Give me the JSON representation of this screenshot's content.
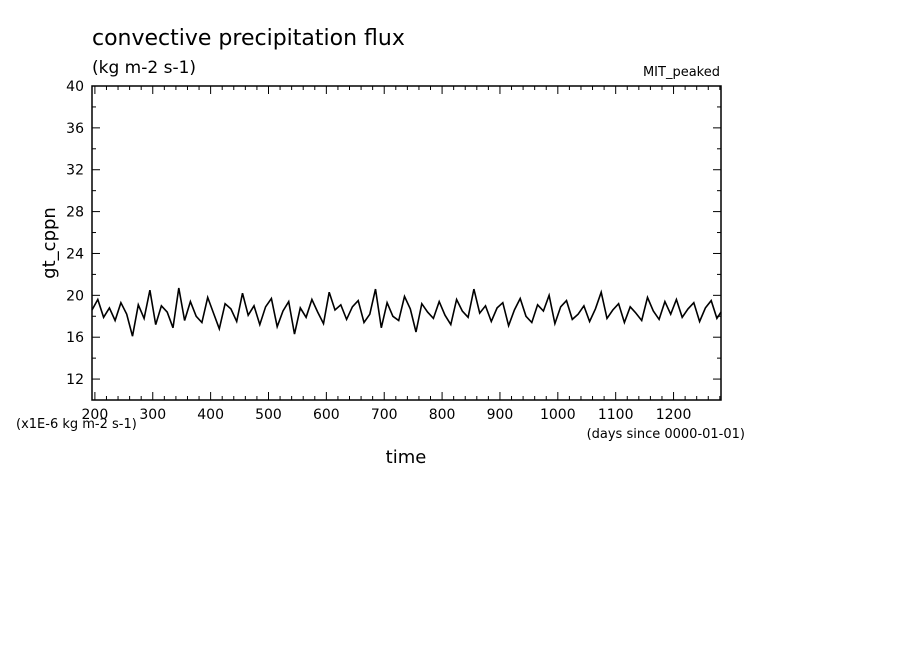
{
  "chart_data": {
    "type": "line",
    "title": "convective precipitation flux",
    "subtitle": "(kg m-2 s-1)",
    "experiment": "MIT_peaked",
    "xlabel": "time",
    "x_units": "(days since 0000-01-01)",
    "ylabel": "gt_cppn",
    "y_scale_note": "(x1E-6 kg m-2 s-1)",
    "xlim": [
      195,
      1282
    ],
    "ylim": [
      10,
      40
    ],
    "x_ticks": [
      200,
      300,
      400,
      500,
      600,
      700,
      800,
      900,
      1000,
      1100,
      1200
    ],
    "y_ticks": [
      12,
      16,
      20,
      24,
      28,
      32,
      36,
      40
    ],
    "grid": false,
    "color": "#000000",
    "series": [
      {
        "name": "",
        "x": [
          195,
          205,
          215,
          225,
          235,
          245,
          255,
          265,
          275,
          285,
          295,
          305,
          315,
          325,
          335,
          345,
          355,
          365,
          375,
          385,
          395,
          405,
          415,
          425,
          435,
          445,
          455,
          465,
          475,
          485,
          495,
          505,
          515,
          525,
          535,
          545,
          555,
          565,
          575,
          585,
          595,
          605,
          615,
          625,
          635,
          645,
          655,
          665,
          675,
          685,
          695,
          705,
          715,
          725,
          735,
          745,
          755,
          765,
          775,
          785,
          795,
          805,
          815,
          825,
          835,
          845,
          855,
          865,
          875,
          885,
          895,
          905,
          915,
          925,
          935,
          945,
          955,
          965,
          975,
          985,
          995,
          1005,
          1015,
          1025,
          1035,
          1045,
          1055,
          1065,
          1075,
          1085,
          1095,
          1105,
          1115,
          1125,
          1135,
          1145,
          1155,
          1165,
          1175,
          1185,
          1195,
          1205,
          1215,
          1225,
          1235,
          1245,
          1255,
          1265,
          1275,
          1282
        ],
        "values": [
          18.6,
          19.6,
          17.9,
          18.8,
          17.6,
          19.3,
          18.2,
          16.1,
          19.1,
          17.8,
          20.5,
          17.2,
          19.0,
          18.4,
          16.9,
          20.7,
          17.6,
          19.4,
          18.0,
          17.4,
          19.8,
          18.3,
          16.8,
          19.2,
          18.7,
          17.5,
          20.2,
          18.1,
          19.0,
          17.2,
          18.9,
          19.7,
          17.0,
          18.5,
          19.4,
          16.3,
          18.8,
          17.9,
          19.6,
          18.4,
          17.3,
          20.3,
          18.6,
          19.1,
          17.7,
          18.9,
          19.5,
          17.4,
          18.2,
          20.6,
          16.9,
          19.3,
          18.0,
          17.6,
          19.9,
          18.7,
          16.5,
          19.2,
          18.4,
          17.8,
          19.4,
          18.1,
          17.2,
          19.6,
          18.5,
          17.9,
          20.6,
          18.3,
          19.0,
          17.5,
          18.8,
          19.3,
          17.1,
          18.6,
          19.7,
          18.0,
          17.4,
          19.1,
          18.5,
          20.0,
          17.3,
          18.9,
          19.5,
          17.7,
          18.2,
          19.0,
          17.5,
          18.7,
          20.3,
          17.8,
          18.6,
          19.2,
          17.4,
          18.9,
          18.3,
          17.6,
          19.8,
          18.5,
          17.7,
          19.4,
          18.2,
          19.6,
          17.9,
          18.7,
          19.3,
          17.5,
          18.8,
          19.5,
          17.8,
          18.4
        ]
      }
    ]
  }
}
